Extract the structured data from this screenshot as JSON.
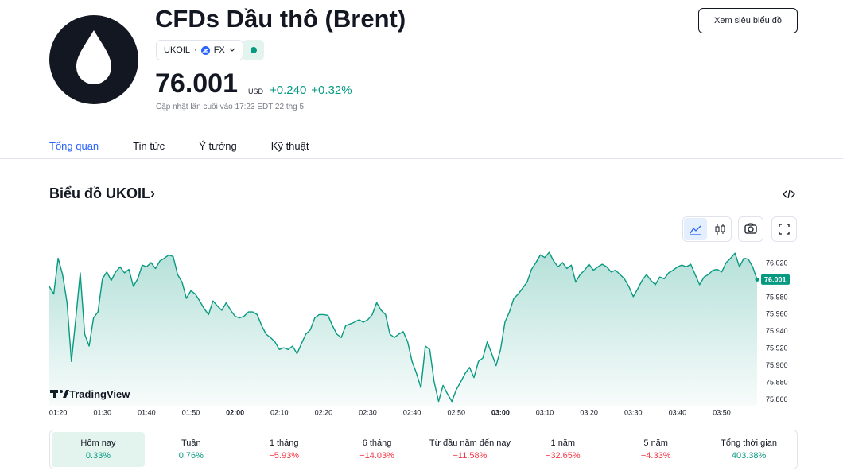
{
  "header": {
    "title": "CFDs Dầu thô (Brent)",
    "symbol": "UKOIL",
    "exchange": "FX",
    "price": "76.001",
    "currency": "USD",
    "change": "+0.240",
    "change_percent": "+0.32%",
    "updated": "Cập nhật lần cuối vào 17:23 EDT 22 thg 5",
    "button": "Xem siêu biểu đồ"
  },
  "tabs": [
    "Tổng quan",
    "Tin tức",
    "Ý tưởng",
    "Kỹ thuật"
  ],
  "section_title": "Biểu đồ UKOIL›",
  "chart_data": {
    "type": "area",
    "color": "#089981",
    "watermark": "TradingView",
    "x": [
      "01:18",
      "01:19",
      "01:20",
      "01:21",
      "01:22",
      "01:23",
      "01:24",
      "01:25",
      "01:26",
      "01:27",
      "01:28",
      "01:29",
      "01:30",
      "01:31",
      "01:32",
      "01:33",
      "01:34",
      "01:35",
      "01:36",
      "01:37",
      "01:38",
      "01:39",
      "01:40",
      "01:41",
      "01:42",
      "01:43",
      "01:44",
      "01:45",
      "01:46",
      "01:47",
      "01:48",
      "01:49",
      "01:50",
      "01:51",
      "01:52",
      "01:53",
      "01:54",
      "01:55",
      "01:56",
      "01:57",
      "01:58",
      "01:59",
      "02:00",
      "02:01",
      "02:02",
      "02:03",
      "02:04",
      "02:05",
      "02:06",
      "02:07",
      "02:08",
      "02:09",
      "02:10",
      "02:11",
      "02:12",
      "02:13",
      "02:14",
      "02:15",
      "02:16",
      "02:17",
      "02:18",
      "02:19",
      "02:20",
      "02:21",
      "02:22",
      "02:23",
      "02:24",
      "02:25",
      "02:26",
      "02:27",
      "02:28",
      "02:29",
      "02:30",
      "02:31",
      "02:32",
      "02:33",
      "02:34",
      "02:35",
      "02:36",
      "02:37",
      "02:38",
      "02:39",
      "02:40",
      "02:41",
      "02:42",
      "02:43",
      "02:44",
      "02:45",
      "02:46",
      "02:47",
      "02:48",
      "02:49",
      "02:50",
      "02:51",
      "02:52",
      "02:53",
      "02:54",
      "02:55",
      "02:56",
      "02:57",
      "02:58",
      "02:59",
      "03:00",
      "03:01",
      "03:02",
      "03:03",
      "03:04",
      "03:05",
      "03:06",
      "03:07",
      "03:08",
      "03:09",
      "03:10",
      "03:11",
      "03:12",
      "03:13",
      "03:14",
      "03:15",
      "03:16",
      "03:17",
      "03:18",
      "03:19",
      "03:20",
      "03:21",
      "03:22",
      "03:23",
      "03:24",
      "03:25",
      "03:26",
      "03:27",
      "03:28",
      "03:29",
      "03:30",
      "03:31",
      "03:32",
      "03:33",
      "03:34",
      "03:35",
      "03:36",
      "03:37",
      "03:38",
      "03:39",
      "03:40",
      "03:41",
      "03:42",
      "03:43",
      "03:44",
      "03:45",
      "03:46",
      "03:47",
      "03:48",
      "03:49",
      "03:50",
      "03:51",
      "03:52",
      "03:53",
      "03:54",
      "03:55",
      "03:56",
      "03:57",
      "03:58"
    ],
    "values": [
      75.993,
      75.984,
      76.026,
      76.007,
      75.974,
      75.905,
      75.956,
      76.009,
      75.937,
      75.923,
      75.956,
      75.963,
      76.002,
      76.01,
      76.0,
      76.01,
      76.016,
      76.009,
      76.013,
      75.993,
      76.002,
      76.018,
      76.016,
      76.021,
      76.014,
      76.023,
      76.026,
      76.03,
      76.028,
      76.007,
      75.998,
      75.979,
      75.988,
      75.984,
      75.976,
      75.967,
      75.96,
      75.976,
      75.97,
      75.965,
      75.974,
      75.965,
      75.958,
      75.956,
      75.958,
      75.963,
      75.963,
      75.96,
      75.947,
      75.937,
      75.933,
      75.928,
      75.919,
      75.921,
      75.919,
      75.923,
      75.914,
      75.926,
      75.937,
      75.942,
      75.956,
      75.96,
      75.96,
      75.959,
      75.947,
      75.937,
      75.933,
      75.947,
      75.949,
      75.951,
      75.954,
      75.951,
      75.954,
      75.96,
      75.974,
      75.965,
      75.96,
      75.937,
      75.933,
      75.937,
      75.94,
      75.928,
      75.905,
      75.891,
      75.874,
      75.923,
      75.919,
      75.881,
      75.858,
      75.877,
      75.867,
      75.858,
      75.872,
      75.881,
      75.891,
      75.898,
      75.886,
      75.905,
      75.909,
      75.928,
      75.914,
      75.9,
      75.919,
      75.951,
      75.963,
      75.979,
      75.984,
      75.991,
      75.998,
      76.013,
      76.021,
      76.03,
      76.027,
      76.033,
      76.023,
      76.016,
      76.021,
      76.014,
      76.018,
      75.998,
      76.007,
      76.012,
      76.019,
      76.012,
      76.016,
      76.019,
      76.016,
      76.01,
      76.012,
      76.007,
      76.002,
      75.993,
      75.981,
      75.99,
      76.0,
      76.007,
      76.0,
      75.995,
      76.004,
      76.002,
      76.009,
      76.012,
      76.016,
      76.018,
      76.016,
      76.019,
      76.007,
      75.995,
      76.004,
      76.007,
      76.012,
      76.013,
      76.01,
      76.021,
      76.026,
      76.032,
      76.016,
      76.026,
      76.025,
      76.016,
      76.001
    ],
    "xlim": [
      "01:18",
      "03:58"
    ],
    "xticks": [
      "01:20",
      "01:30",
      "01:40",
      "01:50",
      "02:00",
      "02:10",
      "02:20",
      "02:30",
      "02:40",
      "02:50",
      "03:00",
      "03:10",
      "03:20",
      "03:30",
      "03:40",
      "03:50"
    ],
    "ylim": [
      75.853,
      76.035
    ],
    "yticks": [
      {
        "value": 75.86,
        "label": "75.860"
      },
      {
        "value": 75.88,
        "label": "75.880"
      },
      {
        "value": 75.9,
        "label": "75.900"
      },
      {
        "value": 75.92,
        "label": "75.920"
      },
      {
        "value": 75.94,
        "label": "75.940"
      },
      {
        "value": 75.96,
        "label": "75.960"
      },
      {
        "value": 75.98,
        "label": "75.980"
      },
      {
        "value": 76.02,
        "label": "76.020"
      }
    ]
  },
  "performance": [
    {
      "label": "Hôm nay",
      "value": "0.33%"
    },
    {
      "label": "Tuần",
      "value": "0.76%"
    },
    {
      "label": "1 tháng",
      "value": "−5.93%"
    },
    {
      "label": "6 tháng",
      "value": "−14.03%"
    },
    {
      "label": "Từ đầu năm đến nay",
      "value": "−11.58%"
    },
    {
      "label": "1 năm",
      "value": "−32.65%"
    },
    {
      "label": "5 năm",
      "value": "−4.33%"
    },
    {
      "label": "Tổng thời gian",
      "value": "403.38%"
    }
  ]
}
